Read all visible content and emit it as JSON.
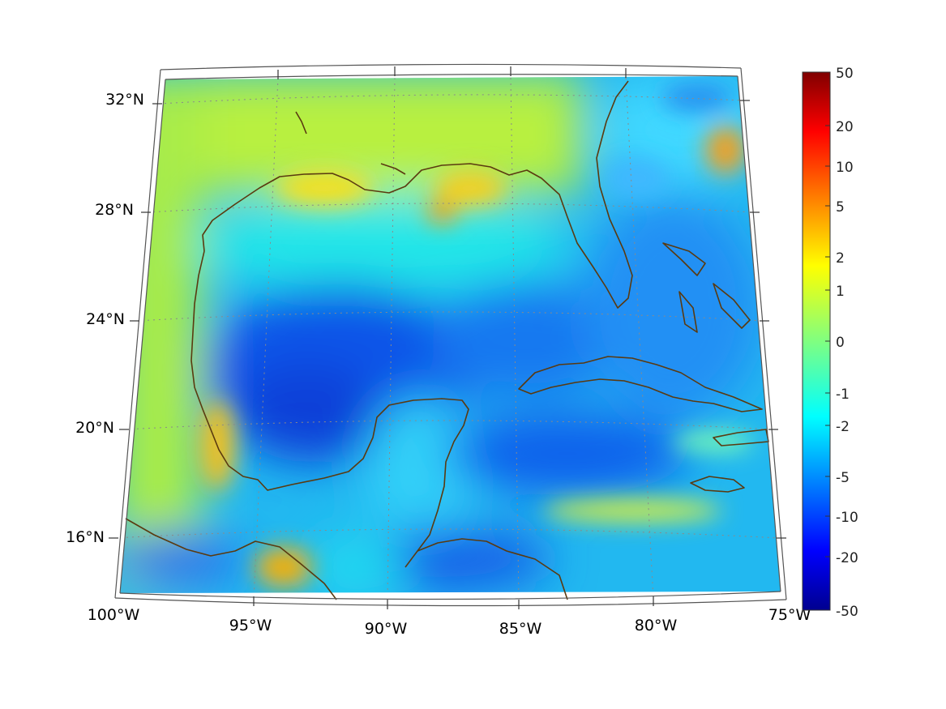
{
  "lat_labels": [
    "32°N",
    "28°N",
    "24°N",
    "20°N",
    "16°N"
  ],
  "lon_labels": [
    "100°W",
    "95°W",
    "90°W",
    "85°W",
    "80°W",
    "75°W"
  ],
  "colorbar": {
    "tick_labels": [
      "50",
      "20",
      "10",
      "5",
      "2",
      "1",
      "0",
      "-1",
      "-2",
      "-5",
      "-10",
      "-20",
      "-50"
    ],
    "range": [
      -50,
      50
    ],
    "colormap": "jet"
  },
  "colors": {
    "coastline": "#5a3a10",
    "frame": "#555555",
    "grid": "#888888"
  },
  "map_extent": {
    "lon_min": -100,
    "lon_max": -75,
    "lat_min": 14,
    "lat_max": 33
  }
}
